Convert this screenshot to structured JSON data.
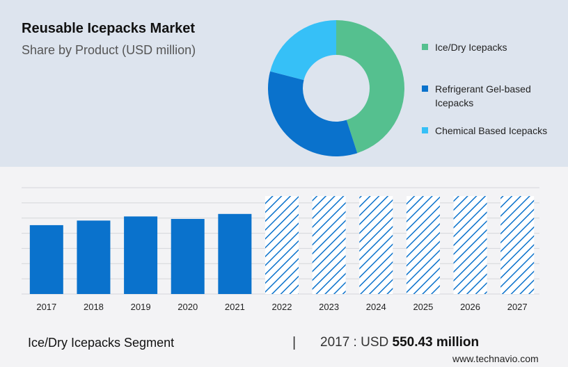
{
  "header": {
    "title": "Reusable Icepacks Market",
    "subtitle": "Share by Product (USD million)"
  },
  "colors": {
    "top_panel": "#dde4ee",
    "bottom_panel": "#f3f3f5",
    "bar_solid": "#0a72cc",
    "bar_hatch": "#0a72cc",
    "grid": "#d4d6da"
  },
  "chart_data": [
    {
      "type": "pie",
      "variant": "donut",
      "slices": [
        {
          "label": "Ice/Dry Icepacks",
          "value": 45,
          "color": "#55c08f"
        },
        {
          "label": "Refrigerant Gel-based Icepacks",
          "value": 34,
          "color": "#0a72cc"
        },
        {
          "label": "Chemical Based Icepacks",
          "value": 21,
          "color": "#36c0f7"
        }
      ],
      "legend_position": "right"
    },
    {
      "type": "bar",
      "categories": [
        "2017",
        "2018",
        "2019",
        "2020",
        "2021",
        "2022",
        "2023",
        "2024",
        "2025",
        "2026",
        "2027"
      ],
      "values": [
        550.43,
        587,
        620,
        600,
        640,
        783,
        783,
        783,
        783,
        783,
        783
      ],
      "forecast_from": "2022",
      "ylim": [
        0,
        850
      ],
      "grid": true,
      "axis_labels_shown": false
    }
  ],
  "footer": {
    "segment_label": "Ice/Dry Icepacks Segment",
    "separator": "|",
    "value_prefix": "2017 : USD",
    "value_highlight": "550.43 million",
    "source": "www.technavio.com"
  }
}
